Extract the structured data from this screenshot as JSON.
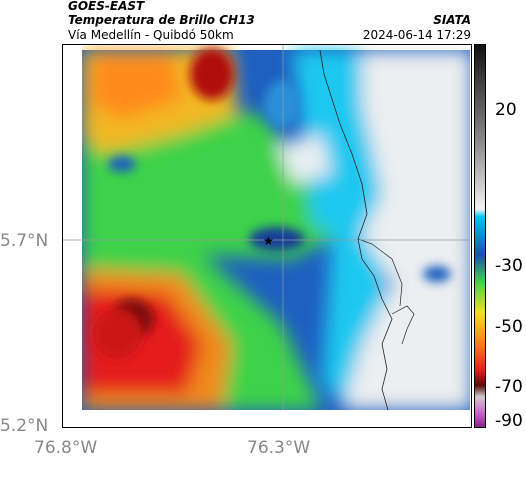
{
  "header": {
    "satellite": "GOES-EAST",
    "product": "Temperatura de Brillo CH13",
    "region": "Vía Medellín - Quibdó 50km",
    "agency": "SIATA",
    "datetime": "2024-06-14 17:29"
  },
  "axes": {
    "lat_ticks": [
      "5.7°N",
      "5.2°N"
    ],
    "lon_ticks": [
      "76.8°W",
      "76.3°W"
    ]
  },
  "colorbar": {
    "ticks": [
      "20",
      "-30",
      "-50",
      "-70",
      "-90"
    ]
  },
  "marker": {
    "symbol": "★",
    "label": ""
  }
}
